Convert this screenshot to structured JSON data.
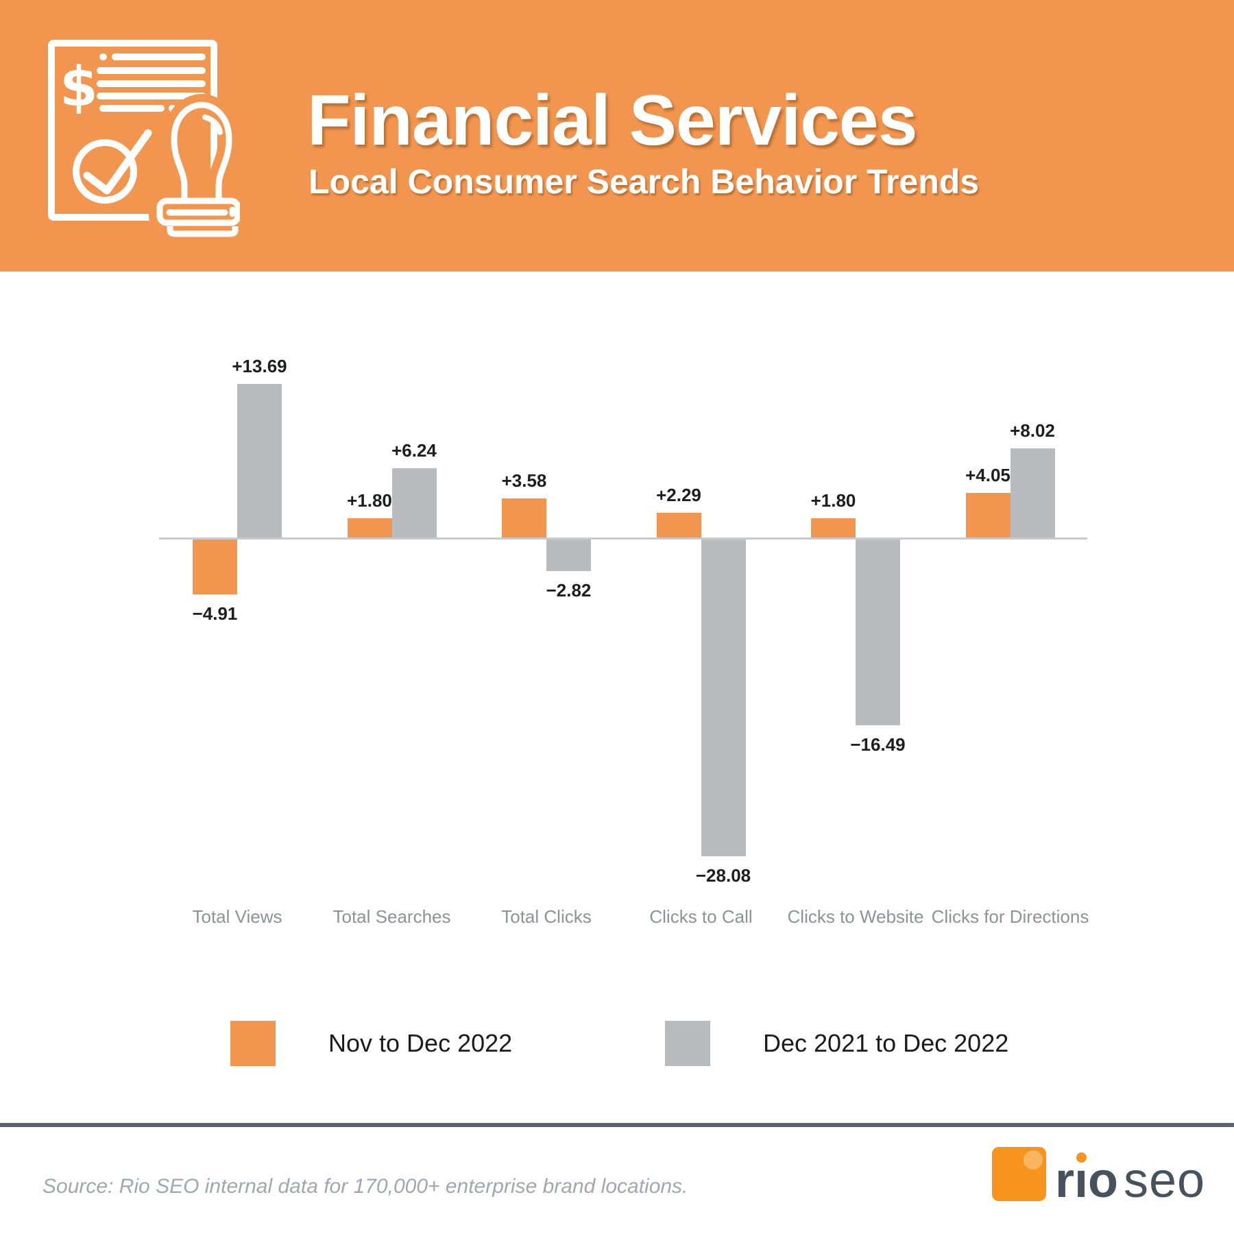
{
  "header": {
    "title": "Financial Services",
    "subtitle": "Local Consumer Search Behavior Trends",
    "icon": "financial-document-stamp-icon"
  },
  "chart_data": {
    "type": "bar",
    "title": "",
    "xlabel": "",
    "ylabel": "",
    "categories": [
      "Total Views",
      "Total Searches",
      "Total Clicks",
      "Clicks to Call",
      "Clicks to Website",
      "Clicks for Directions"
    ],
    "series": [
      {
        "name": "Nov to Dec 2022",
        "color": "#F2954F",
        "values": [
          -4.91,
          1.8,
          3.58,
          2.29,
          1.8,
          4.05
        ]
      },
      {
        "name": "Dec 2021 to Dec 2022",
        "color": "#B9BBBF",
        "values": [
          13.69,
          6.24,
          -2.82,
          -28.08,
          -16.49,
          8.02
        ]
      }
    ],
    "value_labels": "signed, two decimals, at bar ends",
    "baseline": 0,
    "ylim": [
      -30,
      16
    ],
    "grid": false,
    "legend_position": "bottom"
  },
  "footer": {
    "source_text": "Source: Rio SEO internal data for 170,000+ enterprise brand locations.",
    "logo": {
      "word1": "rio",
      "word2": "seo"
    }
  },
  "colors": {
    "header_bg": "#F2954F",
    "orange_series": "#F2954F",
    "gray_series": "#B9BBBF",
    "axis_line": "#C9CBCE",
    "value_label": "#1D1E20",
    "category_label": "#8D9298",
    "legend_label": "#1B1B1D",
    "divider": "#5B6570",
    "source_text": "#A2A7AE",
    "logo_orange": "#F7941E",
    "logo_slate": "#47525E"
  }
}
